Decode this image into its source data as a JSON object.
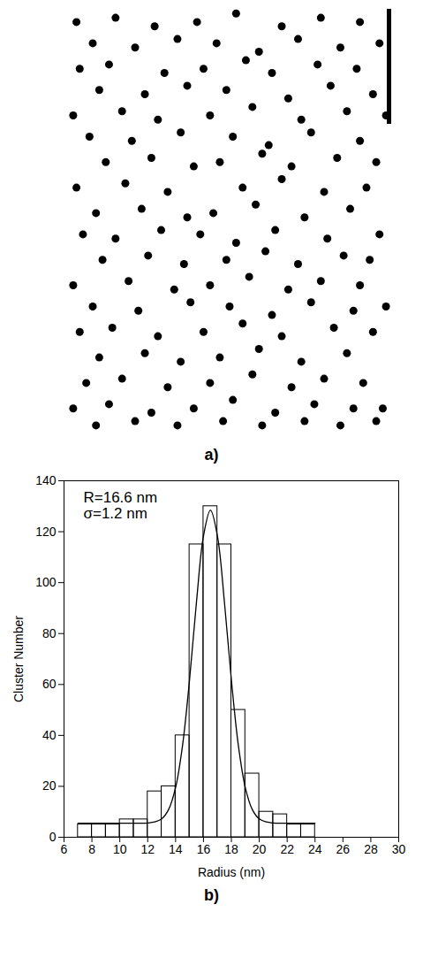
{
  "chart_data": [
    {
      "type": "scatter",
      "title": "a)",
      "color": "#000000",
      "tick_labels": false,
      "xlim": [
        0,
        100
      ],
      "ylim": [
        0,
        100
      ],
      "x": [
        3,
        15,
        27,
        40,
        52,
        66,
        78,
        90,
        8,
        21,
        34,
        46,
        59,
        71,
        84,
        96,
        4,
        13,
        30,
        42,
        55,
        63,
        77,
        89,
        10,
        24,
        37,
        49,
        68,
        81,
        94,
        2,
        17,
        28,
        44,
        57,
        72,
        86,
        98,
        7,
        20,
        35,
        51,
        62,
        75,
        90,
        12,
        26,
        39,
        47,
        60,
        69,
        83,
        95,
        3,
        18,
        31,
        54,
        66,
        79,
        92,
        9,
        23,
        37,
        45,
        58,
        73,
        87,
        5,
        15,
        29,
        41,
        52,
        64,
        80,
        96,
        11,
        25,
        36,
        49,
        61,
        71,
        85,
        93,
        2,
        19,
        33,
        44,
        56,
        68,
        78,
        90,
        8,
        22,
        38,
        50,
        63,
        75,
        88,
        98,
        4,
        14,
        28,
        42,
        54,
        66,
        82,
        94,
        10,
        24,
        35,
        47,
        59,
        72,
        86,
        6,
        17,
        31,
        44,
        57,
        69,
        79,
        91,
        2,
        13,
        26,
        39,
        51,
        64,
        76,
        88,
        97,
        9,
        21,
        34,
        48,
        60,
        73,
        84,
        95
      ],
      "values": [
        97,
        98,
        96,
        97,
        99,
        96,
        98,
        97,
        92,
        91,
        93,
        92,
        90,
        93,
        91,
        92,
        86,
        87,
        85,
        86,
        88,
        85,
        87,
        86,
        81,
        80,
        82,
        81,
        79,
        82,
        80,
        75,
        76,
        74,
        75,
        77,
        74,
        76,
        75,
        70,
        69,
        71,
        70,
        68,
        71,
        69,
        64,
        65,
        63,
        64,
        66,
        63,
        65,
        64,
        58,
        59,
        57,
        58,
        60,
        57,
        58,
        52,
        53,
        51,
        52,
        54,
        51,
        53,
        47,
        46,
        48,
        47,
        45,
        48,
        46,
        47,
        41,
        42,
        40,
        41,
        43,
        40,
        42,
        41,
        35,
        36,
        34,
        35,
        37,
        34,
        36,
        35,
        30,
        29,
        31,
        30,
        28,
        31,
        29,
        30,
        24,
        25,
        23,
        24,
        26,
        23,
        25,
        24,
        18,
        19,
        17,
        18,
        20,
        17,
        19,
        12,
        13,
        11,
        12,
        14,
        11,
        13,
        12,
        6,
        7,
        5,
        6,
        8,
        5,
        7,
        6,
        6,
        2,
        3,
        2,
        3,
        2,
        3,
        2,
        3
      ]
    },
    {
      "type": "histogram",
      "title": "b)",
      "color": "#000000",
      "x_label": "Radius (nm)",
      "y_label": "Cluster Number",
      "bins": [
        7,
        8,
        9,
        10,
        11,
        12,
        13,
        14,
        15,
        16,
        17,
        18,
        19,
        20,
        21,
        22,
        23,
        24
      ],
      "values": [
        5,
        5,
        5,
        7,
        7,
        18,
        20,
        40,
        115,
        130,
        115,
        50,
        25,
        10,
        9,
        5,
        5
      ],
      "fit": {
        "x": [
          7,
          7.5,
          8,
          8.5,
          9,
          9.5,
          10,
          10.5,
          11,
          11.5,
          12,
          12.5,
          13,
          13.5,
          14,
          14.5,
          15,
          15.5,
          16,
          16.5,
          17,
          17.5,
          18,
          18.5,
          19,
          19.5,
          20,
          20.5,
          21,
          21.5,
          22,
          22.5,
          23,
          23.5,
          24
        ],
        "values": [
          5.5,
          5.5,
          5.5,
          5.5,
          5.5,
          5.5,
          5.5,
          5.5,
          5.5,
          5.5,
          5.6,
          6.0,
          7.2,
          10.9,
          19.5,
          36.1,
          61.8,
          92.5,
          118.3,
          128.5,
          118.3,
          92.5,
          61.8,
          36.1,
          19.5,
          10.9,
          7.2,
          6.0,
          5.6,
          5.5,
          5.5,
          5.5,
          5.5,
          5.5,
          5.5
        ]
      },
      "annotations": [
        "R=16.6 nm",
        "σ=1.2 nm"
      ],
      "xlim": [
        6,
        30
      ],
      "xticks": [
        6,
        8,
        10,
        12,
        14,
        16,
        18,
        20,
        22,
        24,
        26,
        28,
        30
      ],
      "ylim": [
        0,
        140
      ],
      "yticks": [
        0,
        20,
        40,
        60,
        80,
        100,
        120,
        140
      ]
    }
  ]
}
